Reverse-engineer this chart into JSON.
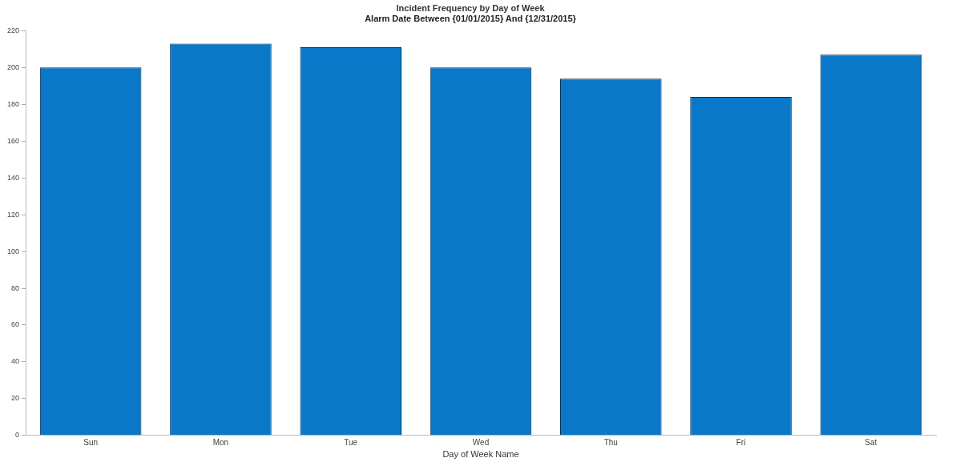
{
  "chart_data": {
    "type": "bar",
    "title": "Incident Frequency by Day of Week",
    "subtitle": "Alarm Date Between {01/01/2015} And {12/31/2015}",
    "xlabel": "Day of Week Name",
    "categories": [
      "Sun",
      "Mon",
      "Tue",
      "Wed",
      "Thu",
      "Fri",
      "Sat"
    ],
    "values": [
      200,
      213,
      211,
      200,
      194,
      184,
      207
    ],
    "color": "#0a78c8",
    "ylim": [
      0,
      220
    ],
    "yticks": [
      0,
      20,
      40,
      60,
      80,
      100,
      120,
      140,
      160,
      180,
      200,
      220
    ],
    "grid": false
  }
}
